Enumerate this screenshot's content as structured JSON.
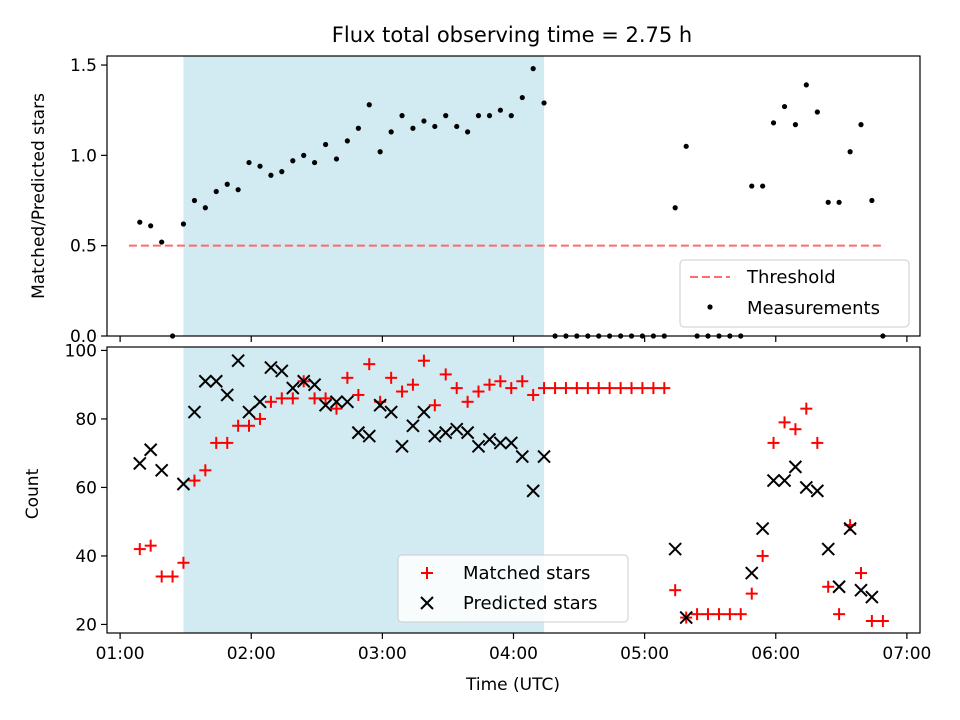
{
  "title": "Flux total observing time = 2.75 h",
  "colors": {
    "shade": "#add8e6",
    "threshold": "#ff6b6b",
    "matched": "#ff0000",
    "predicted": "#000000",
    "measure": "#000000"
  },
  "chart_data": [
    {
      "type": "scatter",
      "ylabel": "Matched/Predicted stars",
      "xlim": [
        0.9,
        7.1
      ],
      "ylim": [
        0,
        1.55
      ],
      "yticks": [
        0,
        0.5,
        1.0,
        1.5
      ],
      "ytick_labels": [
        "0.0",
        "0.5",
        "1.0",
        "1.5"
      ],
      "shaded_span": [
        1.483,
        4.233
      ],
      "threshold": {
        "value": 0.5,
        "x_range": [
          1.067,
          6.833
        ]
      },
      "legend": {
        "position": "bottom-right",
        "entries": [
          "Threshold",
          "Measurements"
        ]
      },
      "series": [
        {
          "name": "Measurements",
          "points": [
            [
              1.15,
              0.63
            ],
            [
              1.233,
              0.61
            ],
            [
              1.317,
              0.52
            ],
            [
              1.4,
              0.0
            ],
            [
              1.483,
              0.62
            ],
            [
              1.567,
              0.75
            ],
            [
              1.65,
              0.71
            ],
            [
              1.733,
              0.8
            ],
            [
              1.817,
              0.84
            ],
            [
              1.9,
              0.81
            ],
            [
              1.983,
              0.96
            ],
            [
              2.067,
              0.94
            ],
            [
              2.15,
              0.89
            ],
            [
              2.233,
              0.91
            ],
            [
              2.317,
              0.97
            ],
            [
              2.4,
              1.0
            ],
            [
              2.483,
              0.96
            ],
            [
              2.567,
              1.06
            ],
            [
              2.65,
              0.98
            ],
            [
              2.733,
              1.08
            ],
            [
              2.817,
              1.15
            ],
            [
              2.9,
              1.28
            ],
            [
              2.983,
              1.02
            ],
            [
              3.067,
              1.13
            ],
            [
              3.15,
              1.22
            ],
            [
              3.233,
              1.15
            ],
            [
              3.317,
              1.19
            ],
            [
              3.4,
              1.16
            ],
            [
              3.483,
              1.22
            ],
            [
              3.567,
              1.16
            ],
            [
              3.65,
              1.13
            ],
            [
              3.733,
              1.22
            ],
            [
              3.817,
              1.22
            ],
            [
              3.9,
              1.25
            ],
            [
              3.983,
              1.22
            ],
            [
              4.067,
              1.32
            ],
            [
              4.15,
              1.48
            ],
            [
              4.233,
              1.29
            ],
            [
              4.317,
              0.0
            ],
            [
              4.4,
              0.0
            ],
            [
              4.483,
              0.0
            ],
            [
              4.567,
              0.0
            ],
            [
              4.65,
              0.0
            ],
            [
              4.733,
              0.0
            ],
            [
              4.817,
              0.0
            ],
            [
              4.9,
              0.0
            ],
            [
              4.983,
              0.0
            ],
            [
              5.067,
              0.0
            ],
            [
              5.15,
              0.0
            ],
            [
              5.233,
              0.71
            ],
            [
              5.317,
              1.05
            ],
            [
              5.4,
              0.0
            ],
            [
              5.483,
              0.0
            ],
            [
              5.567,
              0.0
            ],
            [
              5.65,
              0.0
            ],
            [
              5.733,
              0.0
            ],
            [
              5.817,
              0.83
            ],
            [
              5.9,
              0.83
            ],
            [
              5.983,
              1.18
            ],
            [
              6.067,
              1.27
            ],
            [
              6.15,
              1.17
            ],
            [
              6.233,
              1.39
            ],
            [
              6.317,
              1.24
            ],
            [
              6.4,
              0.74
            ],
            [
              6.483,
              0.74
            ],
            [
              6.567,
              1.02
            ],
            [
              6.65,
              1.17
            ],
            [
              6.733,
              0.75
            ],
            [
              6.817,
              0.0
            ]
          ]
        }
      ]
    },
    {
      "type": "scatter",
      "xlabel": "Time (UTC)",
      "ylabel": "Count",
      "xlim": [
        0.9,
        7.1
      ],
      "ylim": [
        17.5,
        101
      ],
      "yticks": [
        20,
        40,
        60,
        80,
        100
      ],
      "ytick_labels": [
        "20",
        "40",
        "60",
        "80",
        "100"
      ],
      "xticks": [
        1,
        2,
        3,
        4,
        5,
        6,
        7
      ],
      "xtick_labels": [
        "01:00",
        "02:00",
        "03:00",
        "04:00",
        "05:00",
        "06:00",
        "07:00"
      ],
      "shaded_span": [
        1.483,
        4.233
      ],
      "legend": {
        "position": "bottom-center",
        "entries": [
          "Matched stars",
          "Predicted stars"
        ]
      },
      "series": [
        {
          "name": "Matched stars",
          "marker": "plus",
          "points": [
            [
              1.15,
              42
            ],
            [
              1.233,
              43
            ],
            [
              1.317,
              34
            ],
            [
              1.4,
              34
            ],
            [
              1.483,
              38
            ],
            [
              1.567,
              62
            ],
            [
              1.65,
              65
            ],
            [
              1.733,
              73
            ],
            [
              1.817,
              73
            ],
            [
              1.9,
              78
            ],
            [
              1.983,
              78
            ],
            [
              2.067,
              80
            ],
            [
              2.15,
              85
            ],
            [
              2.233,
              86
            ],
            [
              2.317,
              86
            ],
            [
              2.4,
              91
            ],
            [
              2.483,
              86
            ],
            [
              2.567,
              86
            ],
            [
              2.65,
              83
            ],
            [
              2.733,
              92
            ],
            [
              2.817,
              87
            ],
            [
              2.9,
              96
            ],
            [
              2.983,
              85
            ],
            [
              3.067,
              92
            ],
            [
              3.15,
              88
            ],
            [
              3.233,
              90
            ],
            [
              3.317,
              97
            ],
            [
              3.4,
              84
            ],
            [
              3.483,
              93
            ],
            [
              3.567,
              89
            ],
            [
              3.65,
              85
            ],
            [
              3.733,
              88
            ],
            [
              3.817,
              90
            ],
            [
              3.9,
              91
            ],
            [
              3.983,
              89
            ],
            [
              4.067,
              91
            ],
            [
              4.15,
              87
            ],
            [
              4.233,
              89
            ],
            [
              4.317,
              89
            ],
            [
              4.4,
              89
            ],
            [
              4.483,
              89
            ],
            [
              4.567,
              89
            ],
            [
              4.65,
              89
            ],
            [
              4.733,
              89
            ],
            [
              4.817,
              89
            ],
            [
              4.9,
              89
            ],
            [
              4.983,
              89
            ],
            [
              5.067,
              89
            ],
            [
              5.15,
              89
            ],
            [
              5.233,
              30
            ],
            [
              5.317,
              22
            ],
            [
              5.4,
              23
            ],
            [
              5.483,
              23
            ],
            [
              5.567,
              23
            ],
            [
              5.65,
              23
            ],
            [
              5.733,
              23
            ],
            [
              5.817,
              29
            ],
            [
              5.9,
              40
            ],
            [
              5.983,
              73
            ],
            [
              6.067,
              79
            ],
            [
              6.15,
              77
            ],
            [
              6.233,
              83
            ],
            [
              6.317,
              73
            ],
            [
              6.4,
              31
            ],
            [
              6.483,
              23
            ],
            [
              6.567,
              49
            ],
            [
              6.65,
              35
            ],
            [
              6.733,
              21
            ],
            [
              6.817,
              21
            ]
          ]
        },
        {
          "name": "Predicted stars",
          "marker": "x",
          "points": [
            [
              1.15,
              67
            ],
            [
              1.233,
              71
            ],
            [
              1.317,
              65
            ],
            [
              1.483,
              61
            ],
            [
              1.567,
              82
            ],
            [
              1.65,
              91
            ],
            [
              1.733,
              91
            ],
            [
              1.817,
              87
            ],
            [
              1.9,
              97
            ],
            [
              1.983,
              82
            ],
            [
              2.067,
              85
            ],
            [
              2.15,
              95
            ],
            [
              2.233,
              94
            ],
            [
              2.317,
              89
            ],
            [
              2.4,
              91
            ],
            [
              2.483,
              90
            ],
            [
              2.567,
              84
            ],
            [
              2.65,
              85
            ],
            [
              2.733,
              85
            ],
            [
              2.817,
              76
            ],
            [
              2.9,
              75
            ],
            [
              2.983,
              84
            ],
            [
              3.067,
              82
            ],
            [
              3.15,
              72
            ],
            [
              3.233,
              78
            ],
            [
              3.317,
              82
            ],
            [
              3.4,
              75
            ],
            [
              3.483,
              76
            ],
            [
              3.567,
              77
            ],
            [
              3.65,
              76
            ],
            [
              3.733,
              72
            ],
            [
              3.817,
              74
            ],
            [
              3.9,
              73
            ],
            [
              3.983,
              73
            ],
            [
              4.067,
              69
            ],
            [
              4.15,
              59
            ],
            [
              4.233,
              69
            ],
            [
              5.233,
              42
            ],
            [
              5.317,
              22
            ],
            [
              5.817,
              35
            ],
            [
              5.9,
              48
            ],
            [
              5.983,
              62
            ],
            [
              6.067,
              62
            ],
            [
              6.15,
              66
            ],
            [
              6.233,
              60
            ],
            [
              6.317,
              59
            ],
            [
              6.4,
              42
            ],
            [
              6.483,
              31
            ],
            [
              6.567,
              48
            ],
            [
              6.65,
              30
            ],
            [
              6.733,
              28
            ]
          ]
        }
      ]
    }
  ]
}
